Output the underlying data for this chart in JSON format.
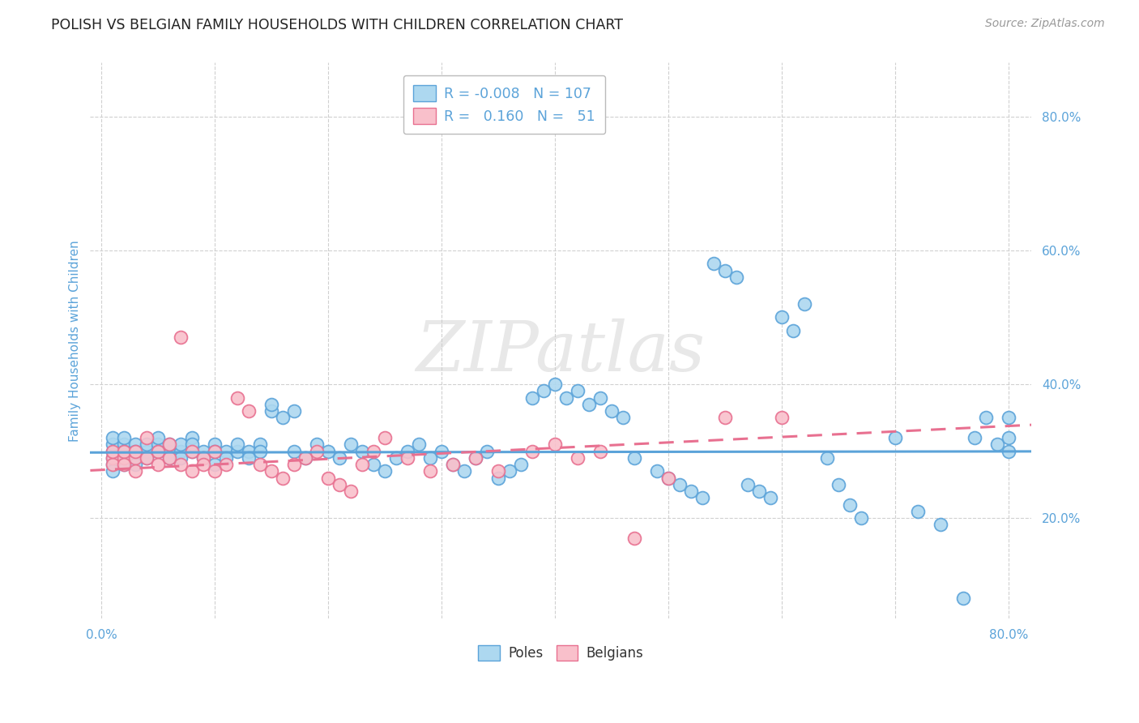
{
  "title": "POLISH VS BELGIAN FAMILY HOUSEHOLDS WITH CHILDREN CORRELATION CHART",
  "source": "Source: ZipAtlas.com",
  "ylabel_label": "Family Households with Children",
  "xlim": [
    -0.01,
    0.82
  ],
  "ylim": [
    0.05,
    0.88
  ],
  "x_ticks": [
    0.0,
    0.1,
    0.2,
    0.3,
    0.4,
    0.5,
    0.6,
    0.7,
    0.8
  ],
  "y_ticks_right": [
    0.2,
    0.4,
    0.6,
    0.8
  ],
  "y_tick_labels_right": [
    "20.0%",
    "40.0%",
    "60.0%",
    "80.0%"
  ],
  "poles_color": "#ADD8F0",
  "poles_edge_color": "#5BA3D9",
  "belgians_color": "#F9C0CB",
  "belgians_edge_color": "#E87090",
  "poles_N": 107,
  "belgians_N": 51,
  "poles_R": -0.008,
  "belgians_R": 0.16,
  "legend_label_poles": "Poles",
  "legend_label_belgians": "Belgians",
  "watermark": "ZIPatlas",
  "background_color": "#ffffff",
  "grid_color": "#d0d0d0",
  "title_color": "#222222",
  "source_color": "#999999",
  "axis_label_color": "#5BA3D9",
  "tick_color": "#5BA3D9",
  "poles_line_color": "#5BA3D9",
  "belgians_line_color": "#E87090",
  "poles_x": [
    0.01,
    0.01,
    0.01,
    0.01,
    0.01,
    0.01,
    0.02,
    0.02,
    0.02,
    0.02,
    0.02,
    0.02,
    0.03,
    0.03,
    0.03,
    0.03,
    0.04,
    0.04,
    0.04,
    0.05,
    0.05,
    0.05,
    0.06,
    0.06,
    0.06,
    0.07,
    0.07,
    0.07,
    0.08,
    0.08,
    0.08,
    0.09,
    0.09,
    0.1,
    0.1,
    0.1,
    0.11,
    0.11,
    0.12,
    0.12,
    0.13,
    0.13,
    0.14,
    0.14,
    0.15,
    0.15,
    0.16,
    0.17,
    0.17,
    0.18,
    0.19,
    0.2,
    0.21,
    0.22,
    0.23,
    0.24,
    0.25,
    0.26,
    0.27,
    0.28,
    0.29,
    0.3,
    0.31,
    0.32,
    0.33,
    0.34,
    0.35,
    0.36,
    0.37,
    0.38,
    0.39,
    0.4,
    0.41,
    0.42,
    0.43,
    0.44,
    0.45,
    0.46,
    0.47,
    0.49,
    0.5,
    0.51,
    0.52,
    0.53,
    0.54,
    0.55,
    0.56,
    0.57,
    0.58,
    0.59,
    0.6,
    0.61,
    0.62,
    0.64,
    0.65,
    0.66,
    0.67,
    0.7,
    0.72,
    0.74,
    0.76,
    0.77,
    0.78,
    0.79,
    0.8,
    0.8,
    0.8
  ],
  "poles_y": [
    0.29,
    0.3,
    0.31,
    0.32,
    0.28,
    0.27,
    0.3,
    0.31,
    0.29,
    0.28,
    0.32,
    0.3,
    0.29,
    0.31,
    0.3,
    0.28,
    0.3,
    0.31,
    0.29,
    0.31,
    0.3,
    0.32,
    0.3,
    0.31,
    0.29,
    0.3,
    0.31,
    0.29,
    0.3,
    0.32,
    0.31,
    0.3,
    0.29,
    0.31,
    0.3,
    0.28,
    0.3,
    0.29,
    0.3,
    0.31,
    0.3,
    0.29,
    0.31,
    0.3,
    0.36,
    0.37,
    0.35,
    0.36,
    0.3,
    0.29,
    0.31,
    0.3,
    0.29,
    0.31,
    0.3,
    0.28,
    0.27,
    0.29,
    0.3,
    0.31,
    0.29,
    0.3,
    0.28,
    0.27,
    0.29,
    0.3,
    0.26,
    0.27,
    0.28,
    0.38,
    0.39,
    0.4,
    0.38,
    0.39,
    0.37,
    0.38,
    0.36,
    0.35,
    0.29,
    0.27,
    0.26,
    0.25,
    0.24,
    0.23,
    0.58,
    0.57,
    0.56,
    0.25,
    0.24,
    0.23,
    0.5,
    0.48,
    0.52,
    0.29,
    0.25,
    0.22,
    0.2,
    0.32,
    0.21,
    0.19,
    0.08,
    0.32,
    0.35,
    0.31,
    0.35,
    0.32,
    0.3
  ],
  "belgians_x": [
    0.01,
    0.01,
    0.01,
    0.02,
    0.02,
    0.02,
    0.03,
    0.03,
    0.03,
    0.04,
    0.04,
    0.05,
    0.05,
    0.06,
    0.06,
    0.07,
    0.07,
    0.08,
    0.08,
    0.09,
    0.09,
    0.1,
    0.1,
    0.11,
    0.12,
    0.13,
    0.14,
    0.15,
    0.16,
    0.17,
    0.18,
    0.19,
    0.2,
    0.21,
    0.22,
    0.23,
    0.24,
    0.25,
    0.27,
    0.29,
    0.31,
    0.33,
    0.35,
    0.38,
    0.4,
    0.42,
    0.44,
    0.47,
    0.5,
    0.55,
    0.6
  ],
  "belgians_y": [
    0.29,
    0.28,
    0.3,
    0.29,
    0.3,
    0.28,
    0.29,
    0.27,
    0.3,
    0.29,
    0.32,
    0.3,
    0.28,
    0.29,
    0.31,
    0.28,
    0.47,
    0.3,
    0.27,
    0.29,
    0.28,
    0.3,
    0.27,
    0.28,
    0.38,
    0.36,
    0.28,
    0.27,
    0.26,
    0.28,
    0.29,
    0.3,
    0.26,
    0.25,
    0.24,
    0.28,
    0.3,
    0.32,
    0.29,
    0.27,
    0.28,
    0.29,
    0.27,
    0.3,
    0.31,
    0.29,
    0.3,
    0.17,
    0.26,
    0.35,
    0.35
  ]
}
